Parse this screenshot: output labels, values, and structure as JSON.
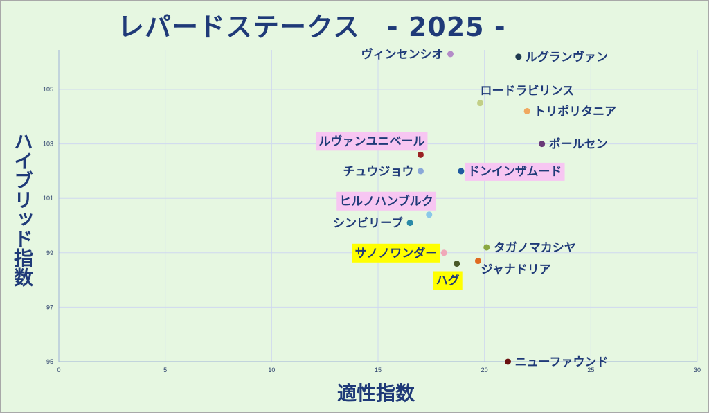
{
  "chart_data": {
    "type": "scatter",
    "title": "レパードステークス　- 2025 -",
    "xlabel": "適性指数",
    "ylabel": "ハイブリッド指数",
    "xlim": [
      0,
      30
    ],
    "ylim": [
      95,
      106
    ],
    "xticks": [
      "0",
      "5",
      "10",
      "15",
      "20",
      "25",
      "30"
    ],
    "yticks": [
      "95",
      "97",
      "99",
      "101",
      "103",
      "105"
    ],
    "grid": true,
    "points": [
      {
        "name": "ヴィンセンシオ",
        "x": 18.4,
        "y": 106.3,
        "color": "#b48cc8",
        "highlight": "",
        "label_side": "left"
      },
      {
        "name": "ルグランヴァン",
        "x": 21.6,
        "y": 106.2,
        "color": "#1f3a50",
        "highlight": "",
        "label_side": "right"
      },
      {
        "name": "ロードラビリンス",
        "x": 19.8,
        "y": 104.5,
        "color": "#c2cf86",
        "highlight": "",
        "label_side": "above"
      },
      {
        "name": "トリポリタニア",
        "x": 22.0,
        "y": 104.2,
        "color": "#f0a860",
        "highlight": "",
        "label_side": "right"
      },
      {
        "name": "ポールセン",
        "x": 22.7,
        "y": 103.0,
        "color": "#6a3a78",
        "highlight": "",
        "label_side": "right"
      },
      {
        "name": "ルヴァンユニベール",
        "x": 17.0,
        "y": 102.6,
        "color": "#9a2222",
        "highlight": "#f7c6f2",
        "label_side": "above-left"
      },
      {
        "name": "チュウジョウ",
        "x": 17.0,
        "y": 102.0,
        "color": "#8aa8d8",
        "highlight": "",
        "label_side": "left"
      },
      {
        "name": "ドンインザムード",
        "x": 18.9,
        "y": 102.0,
        "color": "#1f5aa0",
        "highlight": "#f7c6f2",
        "label_side": "right"
      },
      {
        "name": "ヒルノハンブルク",
        "x": 17.4,
        "y": 100.4,
        "color": "#8ac8e8",
        "highlight": "#f7c6f2",
        "label_side": "above-left"
      },
      {
        "name": "シンビリーブ",
        "x": 16.5,
        "y": 100.1,
        "color": "#2a8aa8",
        "highlight": "",
        "label_side": "left"
      },
      {
        "name": "タガノマカシヤ",
        "x": 20.1,
        "y": 99.2,
        "color": "#8aa840",
        "highlight": "",
        "label_side": "right"
      },
      {
        "name": "サノノワンダー",
        "x": 18.1,
        "y": 99.0,
        "color": "#f0a8b8",
        "highlight": "#ffff00",
        "label_side": "left"
      },
      {
        "name": "ジャナドリア",
        "x": 19.7,
        "y": 98.7,
        "color": "#e06a20",
        "highlight": "",
        "label_side": "below-right"
      },
      {
        "name": "ハグ",
        "x": 18.7,
        "y": 98.6,
        "color": "#4a5a28",
        "highlight": "#ffff00",
        "label_side": "below-left"
      },
      {
        "name": "ニューファウンド",
        "x": 21.1,
        "y": 95.0,
        "color": "#6a1010",
        "highlight": "",
        "label_side": "right"
      }
    ]
  }
}
